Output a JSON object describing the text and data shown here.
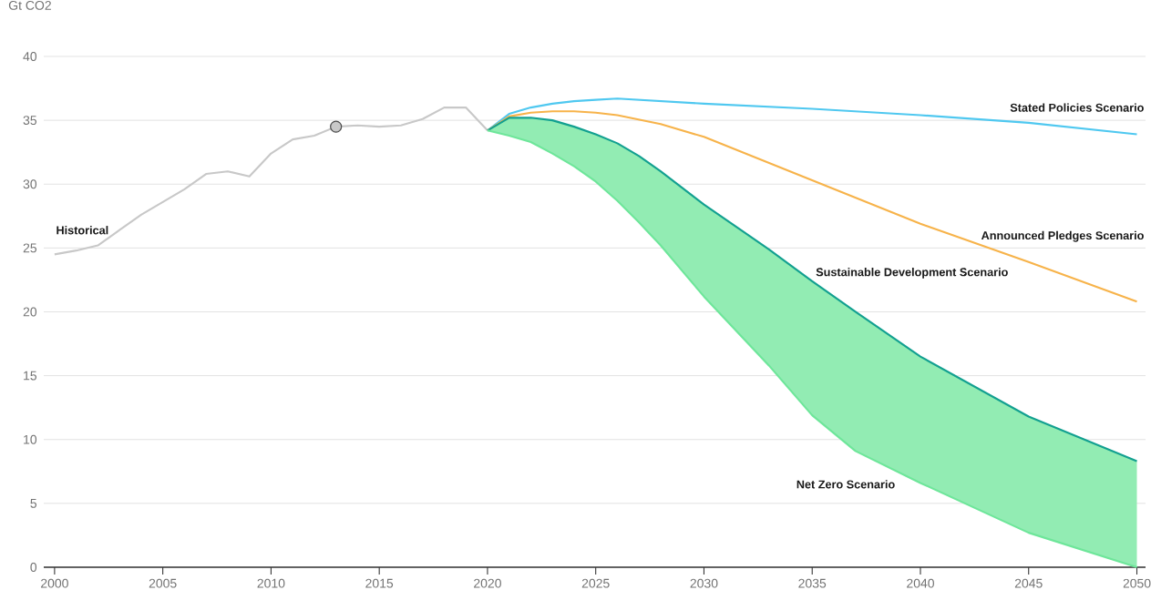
{
  "chart_data": {
    "type": "line",
    "ylabel": "Gt CO2",
    "xlim": [
      1999.5,
      2050.4
    ],
    "ylim": [
      0,
      40
    ],
    "xticks": [
      2000,
      2005,
      2010,
      2015,
      2020,
      2025,
      2030,
      2035,
      2040,
      2045,
      2050
    ],
    "yticks": [
      0,
      5,
      10,
      15,
      20,
      25,
      30,
      35,
      40
    ],
    "grid": "y",
    "line_style": "solid",
    "series": [
      {
        "name": "Historical",
        "color": "#c8c8c8",
        "x": [
          2000,
          2001,
          2002,
          2003,
          2004,
          2005,
          2006,
          2007,
          2008,
          2009,
          2010,
          2011,
          2012,
          2013,
          2014,
          2015,
          2016,
          2017,
          2018,
          2019,
          2020
        ],
        "values": [
          24.5,
          24.8,
          25.2,
          26.4,
          27.6,
          28.6,
          29.6,
          30.8,
          31.0,
          30.6,
          32.4,
          33.5,
          33.8,
          34.5,
          34.6,
          34.5,
          34.6,
          35.1,
          36.0,
          36.0,
          34.2
        ]
      },
      {
        "name": "Stated Policies Scenario",
        "color": "#4fc8f0",
        "x": [
          2020,
          2021,
          2022,
          2023,
          2024,
          2025,
          2026,
          2030,
          2035,
          2040,
          2045,
          2050
        ],
        "values": [
          34.2,
          35.5,
          36.0,
          36.3,
          36.5,
          36.6,
          36.7,
          36.3,
          35.9,
          35.4,
          34.8,
          33.9
        ]
      },
      {
        "name": "Announced Pledges Scenario",
        "color": "#f7b34a",
        "x": [
          2020,
          2021,
          2022,
          2023,
          2024,
          2025,
          2026,
          2028,
          2030,
          2035,
          2040,
          2045,
          2050
        ],
        "values": [
          34.2,
          35.3,
          35.6,
          35.7,
          35.7,
          35.6,
          35.4,
          34.7,
          33.7,
          30.3,
          26.9,
          23.9,
          20.8
        ]
      },
      {
        "name": "Sustainable Development Scenario",
        "color": "#12a090",
        "x": [
          2020,
          2021,
          2022,
          2023,
          2024,
          2025,
          2026,
          2027,
          2028,
          2029,
          2030,
          2033,
          2035,
          2037,
          2040,
          2045,
          2050
        ],
        "values": [
          34.2,
          35.2,
          35.2,
          35.0,
          34.5,
          33.9,
          33.2,
          32.2,
          31.0,
          29.7,
          28.4,
          24.9,
          22.4,
          20.0,
          16.5,
          11.8,
          8.3
        ]
      },
      {
        "name": "Net Zero Scenario",
        "color": "#6ee69a",
        "x": [
          2020,
          2021,
          2022,
          2023,
          2024,
          2025,
          2026,
          2027,
          2028,
          2029,
          2030,
          2033,
          2035,
          2037,
          2040,
          2045,
          2050
        ],
        "values": [
          34.2,
          33.8,
          33.3,
          32.4,
          31.4,
          30.2,
          28.7,
          27.0,
          25.2,
          23.2,
          21.2,
          15.8,
          11.9,
          9.1,
          6.6,
          2.7,
          0
        ],
        "lower": [
          34.2,
          33.8,
          33.3,
          32.4,
          31.4,
          30.2,
          28.7,
          27.0,
          25.2,
          23.2,
          21.2,
          15.8,
          11.9,
          9.1,
          6.6,
          2.7,
          0
        ],
        "upper": [
          34.2,
          35.2,
          35.2,
          35.0,
          34.5,
          33.9,
          33.2,
          32.2,
          31.0,
          29.7,
          28.4,
          24.9,
          22.4,
          20.0,
          16.5,
          11.8,
          8.3
        ]
      },
      {
        "type": "scatter",
        "marker": "circle",
        "color": "#c8c8c8",
        "x": [
          2013
        ],
        "values": [
          34.5
        ]
      }
    ]
  }
}
